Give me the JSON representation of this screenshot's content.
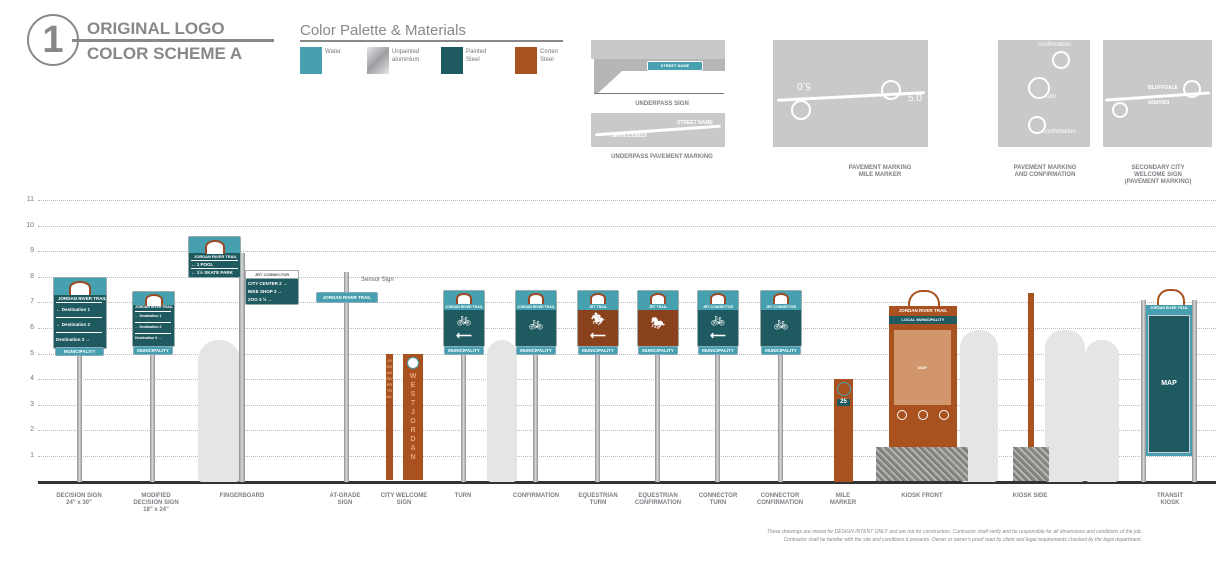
{
  "header": {
    "number": "1",
    "line1": "ORIGINAL LOGO",
    "line2": "COLOR SCHEME A"
  },
  "palette": {
    "title": "Color Palette & Materials",
    "items": [
      {
        "label1": "Water",
        "label2": "",
        "color": "#46a0b0"
      },
      {
        "label1": "Unpainted",
        "label2": "aluminium",
        "color": "#c4c5c7"
      },
      {
        "label1": "Painted",
        "label2": "Steel",
        "color": "#1f5a60"
      },
      {
        "label1": "Corten",
        "label2": "Steel",
        "color": "#a9511f"
      }
    ]
  },
  "top_panels": {
    "underpass_sign": {
      "sign_text": "STREET NAME",
      "label": "UNDERPASS SIGN"
    },
    "underpass_marking": {
      "text1": "STREET NAME",
      "text2": "STREET NAME",
      "label": "UNDERPASS PAVEMENT MARKING"
    },
    "mile_marker": {
      "left_value": "5.0",
      "left_unit": "MILES",
      "right_value": "5.0",
      "right_unit": "MILES",
      "label1": "PAVEMENT MARKING",
      "label2": "MILE MARKER"
    },
    "confirmation": {
      "top": "confirmation",
      "mid": "turn",
      "bottom": "confirmation",
      "label1": "PAVEMENT MARKING",
      "label2": "AND CONFIRMATION"
    },
    "secondary": {
      "text1": "BLUFFDALE",
      "text2": "DRAPER",
      "label1": "SECONDARY CITY",
      "label2": "WELCOME SIGN",
      "label3": "(PAVEMENT MARKING)"
    }
  },
  "scale": {
    "ticks": [
      "11",
      "10",
      "9",
      "8",
      "7",
      "6",
      "5",
      "4",
      "3",
      "2",
      "1"
    ]
  },
  "signs": {
    "trail_name": "JORDAN RIVER TRAIL",
    "municipality": "MUNICIPALITY",
    "decision": {
      "rows": [
        "Destination 1",
        "Destination 2",
        "Destination 3"
      ]
    },
    "modified": {
      "rows": [
        "Destination 1",
        "Destination 2",
        "Destination 3"
      ]
    },
    "fingerboard": {
      "title": "JORDAN RIVER TRAIL",
      "rows": [
        {
          "arrow": "←",
          "dist": "1",
          "dest": "POOL"
        },
        {
          "arrow": "←",
          "dist": "1½",
          "dest": "SKATE PARK"
        }
      ],
      "connector_title": "JRT CONNECTOR",
      "connector_rows": [
        {
          "dest": "CITY CENTER",
          "dist": "2",
          "arrow": "→"
        },
        {
          "dest": "BIKE SHOP",
          "dist": "3",
          "arrow": "→"
        },
        {
          "dest": "ZOO",
          "dist": "3 ½",
          "arrow": "→"
        }
      ]
    },
    "at_grade": {
      "text": "JORDAN RIVER TRAIL",
      "callout": "Sensor Sign"
    },
    "city_welcome": {
      "left": "JORDAN RIVER TRAIL",
      "right": "WEST JORDAN"
    },
    "small_titles": {
      "turn": "JORDAN RIVER TRAIL",
      "confirmation": "JORDAN RIVER TRAIL",
      "equestrian_turn": "JRT TRAIL",
      "equestrian_confirmation": "JRT TRAIL",
      "connector_turn": "JRT CONNECTOR",
      "connector_confirmation": "JRT CONNECTOR"
    },
    "mile_marker": {
      "value": "25"
    },
    "kiosk_front": {
      "title": "JORDAN RIVER TRAIL",
      "subtitle": "LOCAL MUNICIPALITY",
      "map": "MAP"
    },
    "transit": {
      "title": "JORDAN RIVER TRAIL",
      "map": "MAP"
    }
  },
  "labels": [
    {
      "l1": "DECISION SIGN",
      "l2": "24\" x 30\"",
      "l3": ""
    },
    {
      "l1": "MODIFIED",
      "l2": "DECISION SIGN",
      "l3": "18\" x 24\""
    },
    {
      "l1": "FINGERBOARD",
      "l2": "",
      "l3": ""
    },
    {
      "l1": "AT-GRADE",
      "l2": "SIGN",
      "l3": ""
    },
    {
      "l1": "CITY WELCOME",
      "l2": "SIGN",
      "l3": ""
    },
    {
      "l1": "TURN",
      "l2": "",
      "l3": ""
    },
    {
      "l1": "CONFIRMATION",
      "l2": "",
      "l3": ""
    },
    {
      "l1": "EQUESTRIAN",
      "l2": "TURN",
      "l3": ""
    },
    {
      "l1": "EQUESTRIAN",
      "l2": "CONFIRMATION",
      "l3": ""
    },
    {
      "l1": "CONNECTOR",
      "l2": "TURN",
      "l3": ""
    },
    {
      "l1": "CONNECTOR",
      "l2": "CONFIRMATION",
      "l3": ""
    },
    {
      "l1": "MILE",
      "l2": "MARKER",
      "l3": ""
    },
    {
      "l1": "KIOSK FRONT",
      "l2": "",
      "l3": ""
    },
    {
      "l1": "KIOSK SIDE",
      "l2": "",
      "l3": ""
    },
    {
      "l1": "TRANSIT",
      "l2": "KIOSK",
      "l3": ""
    }
  ],
  "disclaimer": {
    "line1": "These drawings are meant for DESIGN INTENT ONLY and are not for construction.  Contractor shall verify and be responsible for all dimensions and conditions of the job.",
    "line2": "Contractor shall be familiar with the site and conditions it presents.  Owner or owner's proof read by client and legal requirements checked by the legal department."
  }
}
